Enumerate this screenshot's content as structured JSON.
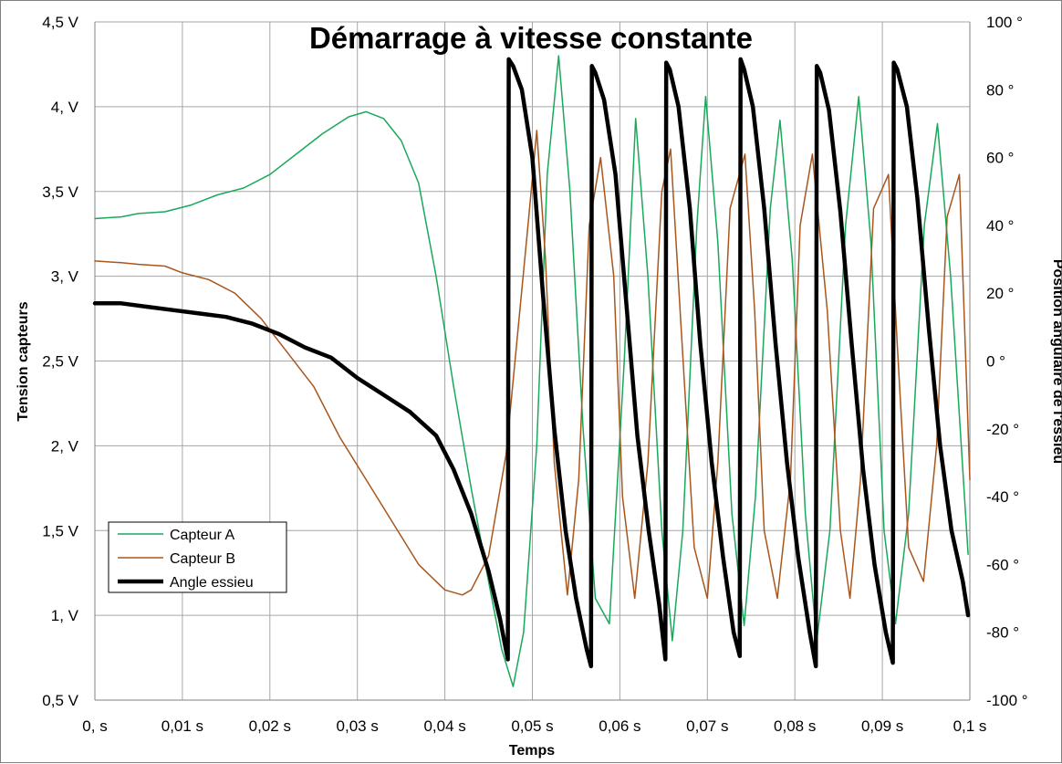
{
  "chart_data": {
    "type": "line",
    "title": "Démarrage à vitesse constante",
    "xlabel": "Temps",
    "ylabel": "Tension capteurs",
    "y2label": "Position angulaire de l'essieu",
    "xlim": [
      0,
      0.1
    ],
    "ylim": [
      0.5,
      4.5
    ],
    "y2lim": [
      -100,
      100
    ],
    "grid": true,
    "legend_position": "bottom-left",
    "x_ticks": [
      0,
      0.01,
      0.02,
      0.03,
      0.04,
      0.05,
      0.06,
      0.07,
      0.08,
      0.09,
      0.1
    ],
    "x_tick_labels": [
      "0, s",
      "0,01 s",
      "0,02 s",
      "0,03 s",
      "0,04 s",
      "0,05 s",
      "0,06 s",
      "0,07 s",
      "0,08 s",
      "0,09 s",
      "0,1 s"
    ],
    "y_ticks": [
      0.5,
      1,
      1.5,
      2,
      2.5,
      3,
      3.5,
      4,
      4.5
    ],
    "y_tick_labels": [
      "0,5 V",
      "1, V",
      "1,5 V",
      "2, V",
      "2,5 V",
      "3, V",
      "3,5 V",
      "4, V",
      "4,5 V"
    ],
    "y2_ticks": [
      -100,
      -80,
      -60,
      -40,
      -20,
      0,
      20,
      40,
      60,
      80,
      100
    ],
    "y2_tick_labels": [
      "-100 °",
      "-80 °",
      "-60 °",
      "-40 °",
      "-20 °",
      "0 °",
      "20 °",
      "40 °",
      "60 °",
      "80 °",
      "100 °"
    ],
    "series": [
      {
        "name": "Capteur A",
        "color": "#1aa85a",
        "width": 1.5,
        "axis": "left",
        "x": [
          0,
          0.003,
          0.005,
          0.008,
          0.011,
          0.014,
          0.017,
          0.02,
          0.023,
          0.026,
          0.029,
          0.031,
          0.033,
          0.035,
          0.037,
          0.039,
          0.041,
          0.043,
          0.045,
          0.0465,
          0.0478,
          0.049,
          0.0505,
          0.0517,
          0.053,
          0.0543,
          0.0558,
          0.0572,
          0.0588,
          0.0605,
          0.0618,
          0.0632,
          0.0648,
          0.066,
          0.0672,
          0.0688,
          0.0698,
          0.0712,
          0.0728,
          0.0742,
          0.0755,
          0.0772,
          0.0783,
          0.0797,
          0.0812,
          0.0825,
          0.084,
          0.0858,
          0.0873,
          0.0887,
          0.0902,
          0.0915,
          0.093,
          0.0948,
          0.0963,
          0.0978,
          0.0998
        ],
        "y": [
          3.34,
          3.35,
          3.37,
          3.38,
          3.42,
          3.48,
          3.52,
          3.6,
          3.72,
          3.84,
          3.94,
          3.97,
          3.93,
          3.8,
          3.55,
          3.0,
          2.35,
          1.75,
          1.2,
          0.8,
          0.58,
          0.9,
          2.0,
          3.6,
          4.3,
          3.5,
          2.1,
          1.1,
          0.95,
          2.5,
          3.93,
          3.0,
          1.5,
          0.85,
          1.5,
          3.3,
          4.06,
          3.2,
          1.6,
          0.94,
          1.7,
          3.4,
          3.92,
          3.1,
          1.6,
          0.85,
          1.5,
          3.3,
          4.06,
          3.2,
          1.5,
          0.95,
          1.6,
          3.3,
          3.9,
          3.0,
          1.36
        ]
      },
      {
        "name": "Capteur B",
        "color": "#a8561c",
        "width": 1.5,
        "axis": "left",
        "x": [
          0,
          0.003,
          0.005,
          0.008,
          0.01,
          0.013,
          0.016,
          0.019,
          0.022,
          0.025,
          0.028,
          0.031,
          0.034,
          0.037,
          0.04,
          0.042,
          0.043,
          0.045,
          0.047,
          0.0495,
          0.0505,
          0.0515,
          0.0525,
          0.054,
          0.0553,
          0.0565,
          0.0578,
          0.0593,
          0.0603,
          0.0617,
          0.0632,
          0.0648,
          0.0658,
          0.067,
          0.0685,
          0.07,
          0.0712,
          0.0726,
          0.0743,
          0.0754,
          0.0765,
          0.078,
          0.0795,
          0.0806,
          0.082,
          0.0837,
          0.0852,
          0.0863,
          0.0875,
          0.089,
          0.0907,
          0.0917,
          0.093,
          0.0947,
          0.0962,
          0.0974,
          0.0988,
          0.1
        ],
        "y": [
          3.09,
          3.08,
          3.07,
          3.06,
          3.02,
          2.98,
          2.9,
          2.75,
          2.55,
          2.35,
          2.05,
          1.8,
          1.55,
          1.3,
          1.15,
          1.12,
          1.15,
          1.35,
          1.95,
          3.3,
          3.86,
          3.1,
          1.9,
          1.12,
          1.8,
          3.3,
          3.7,
          3.0,
          1.7,
          1.1,
          1.9,
          3.5,
          3.75,
          2.7,
          1.4,
          1.1,
          1.9,
          3.4,
          3.72,
          2.8,
          1.5,
          1.1,
          1.8,
          3.3,
          3.72,
          2.8,
          1.5,
          1.1,
          1.8,
          3.4,
          3.6,
          2.6,
          1.4,
          1.2,
          2.0,
          3.35,
          3.6,
          1.8
        ]
      },
      {
        "name": "Angle essieu",
        "color": "#000000",
        "width": 4.5,
        "axis": "right",
        "x": [
          0,
          0.003,
          0.006,
          0.009,
          0.012,
          0.015,
          0.018,
          0.021,
          0.024,
          0.027,
          0.03,
          0.033,
          0.036,
          0.039,
          0.041,
          0.043,
          0.045,
          0.0463,
          0.0472,
          0.0473,
          0.0478,
          0.0488,
          0.05,
          0.0512,
          0.0525,
          0.0538,
          0.055,
          0.0562,
          0.0567,
          0.0568,
          0.0572,
          0.0582,
          0.0595,
          0.0608,
          0.062,
          0.0633,
          0.0645,
          0.0652,
          0.0653,
          0.0657,
          0.0667,
          0.068,
          0.0692,
          0.0705,
          0.0718,
          0.073,
          0.0737,
          0.0738,
          0.0742,
          0.0752,
          0.0765,
          0.0778,
          0.0791,
          0.0804,
          0.0817,
          0.0824,
          0.0825,
          0.0829,
          0.0839,
          0.0852,
          0.0865,
          0.0878,
          0.0891,
          0.0904,
          0.0912,
          0.0913,
          0.0917,
          0.0928,
          0.094,
          0.0953,
          0.0966,
          0.0979,
          0.0992,
          0.0998
        ],
        "y": [
          17,
          17,
          16,
          15,
          14,
          13,
          11,
          8,
          4,
          1,
          -5,
          -10,
          -15,
          -22,
          -32,
          -45,
          -62,
          -76,
          -88,
          89,
          87,
          80,
          60,
          20,
          -20,
          -50,
          -70,
          -85,
          -90,
          87,
          85,
          77,
          55,
          15,
          -22,
          -50,
          -72,
          -88,
          88,
          86,
          75,
          45,
          5,
          -30,
          -58,
          -80,
          -87,
          89,
          86,
          75,
          45,
          5,
          -30,
          -58,
          -80,
          -90,
          87,
          85,
          74,
          44,
          5,
          -32,
          -60,
          -80,
          -89,
          88,
          86,
          75,
          48,
          10,
          -25,
          -50,
          -65,
          -75
        ]
      }
    ]
  }
}
